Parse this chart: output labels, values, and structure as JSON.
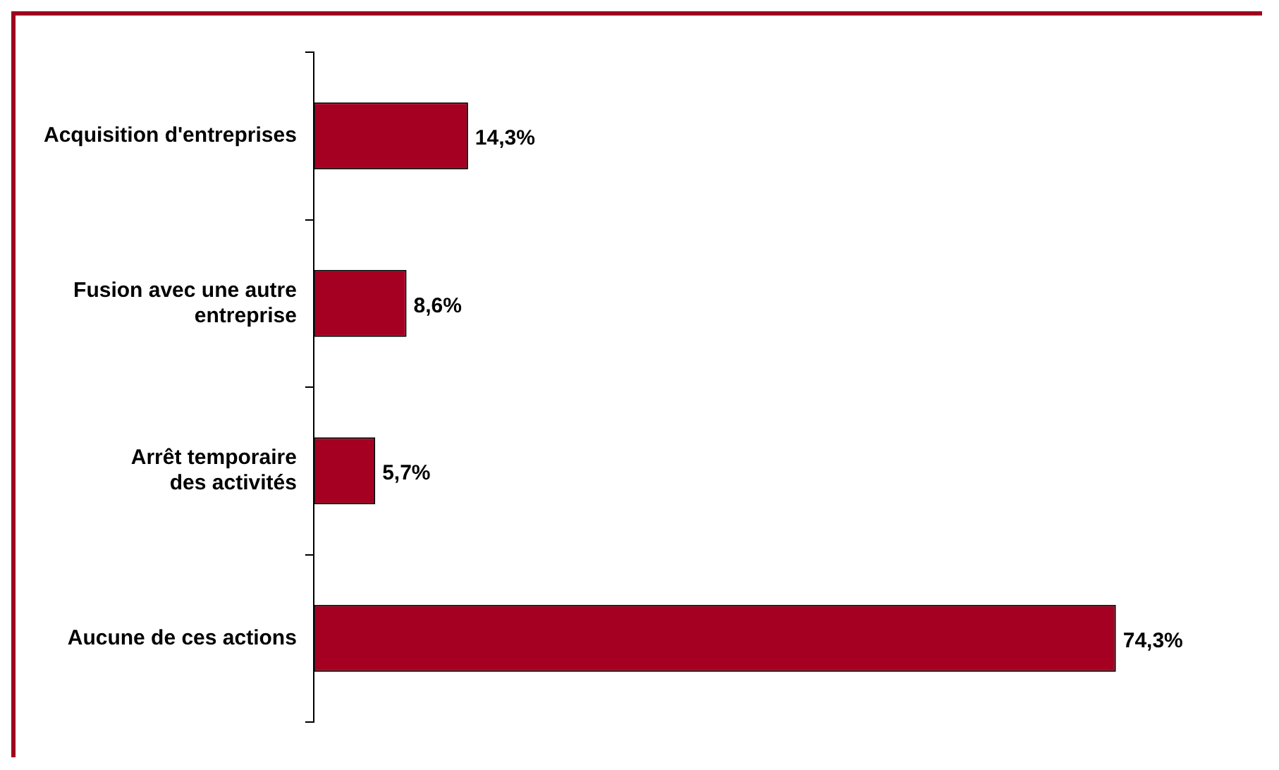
{
  "chart_data": {
    "type": "bar",
    "orientation": "horizontal",
    "categories": [
      "Acquisition d'entreprises",
      "Fusion avec une autre\nentreprise",
      "Arrêt temporaire\ndes activités",
      "Aucune de ces actions"
    ],
    "values": [
      14.3,
      8.6,
      5.7,
      74.3
    ],
    "value_labels": [
      "14,3%",
      "8,6%",
      "5,7%",
      "74,3%"
    ],
    "color": "#a50021",
    "grid": false,
    "legend": false,
    "tick_labels": "y"
  }
}
